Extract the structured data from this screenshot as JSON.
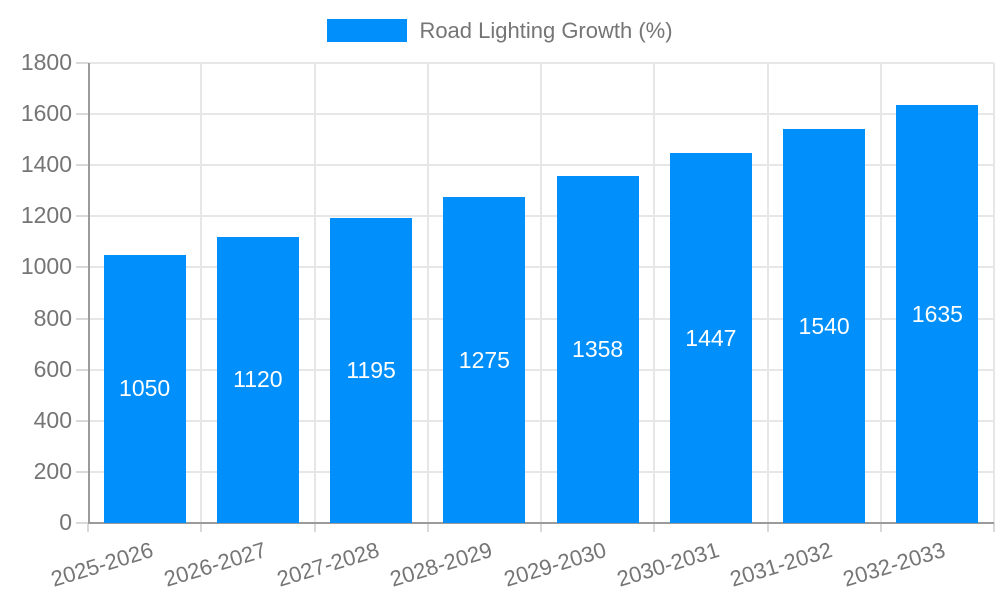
{
  "chart_data": {
    "type": "bar",
    "title": "Road Lighting Growth (%)",
    "categories": [
      "2025-2026",
      "2026-2027",
      "2027-2028",
      "2028-2029",
      "2029-2030",
      "2030-2031",
      "2031-2032",
      "2032-2033"
    ],
    "series": [
      {
        "name": "Road Lighting Growth (%)",
        "values": [
          1050,
          1120,
          1195,
          1275,
          1358,
          1447,
          1540,
          1635
        ]
      }
    ],
    "xlabel": "",
    "ylabel": "",
    "ylim": [
      0,
      1800
    ],
    "yticks": [
      0,
      200,
      400,
      600,
      800,
      1000,
      1200,
      1400,
      1600,
      1800
    ],
    "grid": true,
    "legend_position": "top-center",
    "legend_marker": "rect",
    "value_labels": "inside-center",
    "x_label_rotation_deg": -17,
    "colors": {
      "bar": "#008FFB",
      "grid": "#e7e7e7",
      "axis": "#9b9b9b",
      "tick": "#d9d9d9",
      "axis_text": "#757575",
      "value_text": "#ffffff",
      "background": "#ffffff"
    }
  }
}
